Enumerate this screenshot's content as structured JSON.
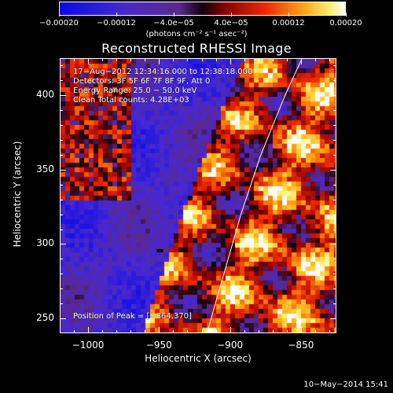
{
  "chart_data": {
    "type": "heatmap",
    "title": "Reconstructed RHESSI Image",
    "xlabel": "Heliocentric X (arcsec)",
    "ylabel": "Heliocentric Y (arcsec)",
    "xlim": [
      -1020,
      -825
    ],
    "ylim": [
      240,
      425
    ],
    "xticks": [
      {
        "value": -1000,
        "label": "−1000"
      },
      {
        "value": -950,
        "label": "−950"
      },
      {
        "value": -900,
        "label": "−900"
      },
      {
        "value": -850,
        "label": "−850"
      }
    ],
    "yticks": [
      {
        "value": 250,
        "label": "250"
      },
      {
        "value": 300,
        "label": "300"
      },
      {
        "value": 350,
        "label": "350"
      },
      {
        "value": 400,
        "label": "400"
      }
    ],
    "colorbar": {
      "min": -0.0002,
      "max": 0.0002,
      "units": "(photons cm⁻² s⁻¹ asec⁻²)",
      "ticks": [
        {
          "value": -0.0002,
          "label": "−0.00020"
        },
        {
          "value": -0.00012,
          "label": "−0.00012"
        },
        {
          "value": -4e-05,
          "label": "−4.0e−05"
        },
        {
          "value": 4e-05,
          "label": "4.0e−05"
        },
        {
          "value": 0.00012,
          "label": "0.00012"
        },
        {
          "value": 0.0002,
          "label": "0.00020"
        }
      ]
    },
    "annotations": {
      "time": "17−Aug−2012 12:34:16.000 to 12:38:18.000",
      "detectors": "Detectors: 3F 5F 6F 7F 8F 9F, Att 0",
      "energy": "Energy Range: 25.0 − 50.0 keV",
      "algorithm": "Clean     Total counts: 4.28E+03",
      "peak": "Position of Peak = [−864,370]"
    },
    "peak": {
      "x": -864,
      "y": 370
    },
    "limb_curve": [
      [
        -917,
        240
      ],
      [
        -905,
        280
      ],
      [
        -893,
        320
      ],
      [
        -879,
        360
      ],
      [
        -862,
        400
      ],
      [
        -850,
        425
      ]
    ]
  },
  "footer": {
    "date": "10−May−2014 15:41"
  }
}
